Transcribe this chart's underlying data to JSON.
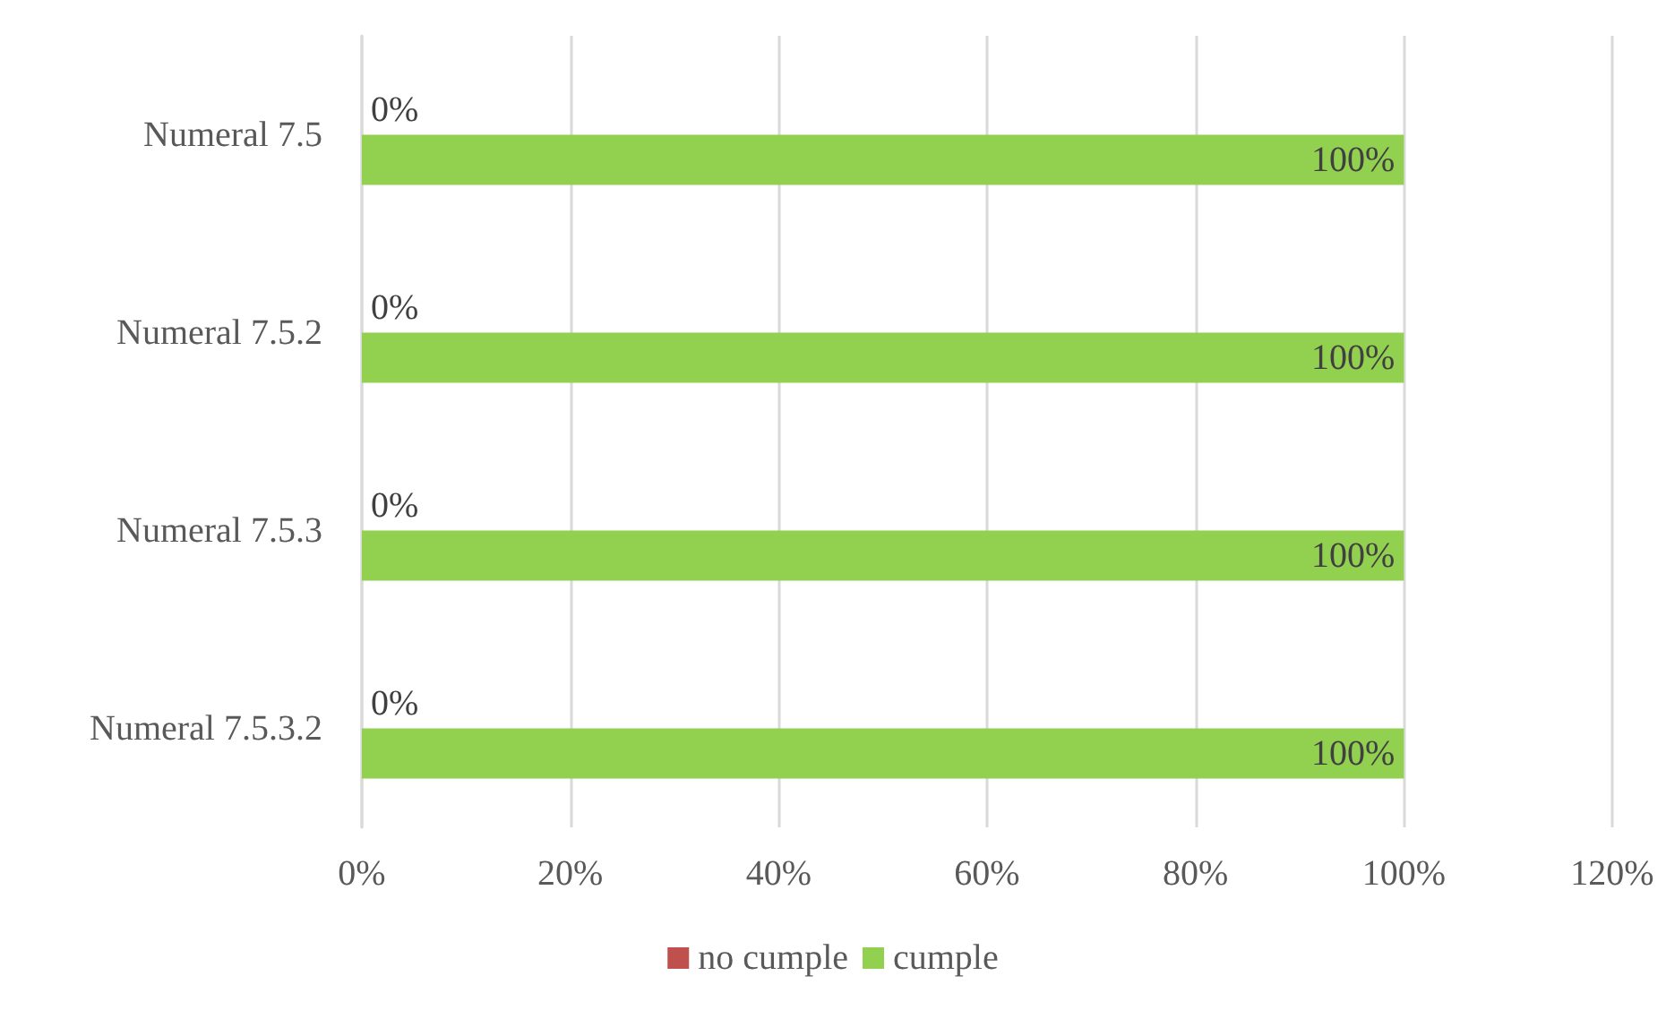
{
  "chart_data": {
    "type": "bar",
    "orientation": "horizontal",
    "categories": [
      "Numeral 7.5",
      "Numeral 7.5.2",
      "Numeral 7.5.3",
      "Numeral 7.5.3.2"
    ],
    "series": [
      {
        "name": "no cumple",
        "color": "#c0504d",
        "values": [
          0,
          0,
          0,
          0
        ],
        "value_labels": [
          "0%",
          "0%",
          "0%",
          "0%"
        ]
      },
      {
        "name": "cumple",
        "color": "#92d050",
        "values": [
          100,
          100,
          100,
          100
        ],
        "value_labels": [
          "100%",
          "100%",
          "100%",
          "100%"
        ]
      }
    ],
    "xlim": [
      0,
      120
    ],
    "xticks": [
      {
        "value": 0,
        "label": "0%"
      },
      {
        "value": 20,
        "label": "20%"
      },
      {
        "value": 40,
        "label": "40%"
      },
      {
        "value": 60,
        "label": "60%"
      },
      {
        "value": 80,
        "label": "80%"
      },
      {
        "value": 100,
        "label": "100%"
      },
      {
        "value": 120,
        "label": "120%"
      }
    ],
    "grid": "x",
    "legend": "bottom"
  }
}
